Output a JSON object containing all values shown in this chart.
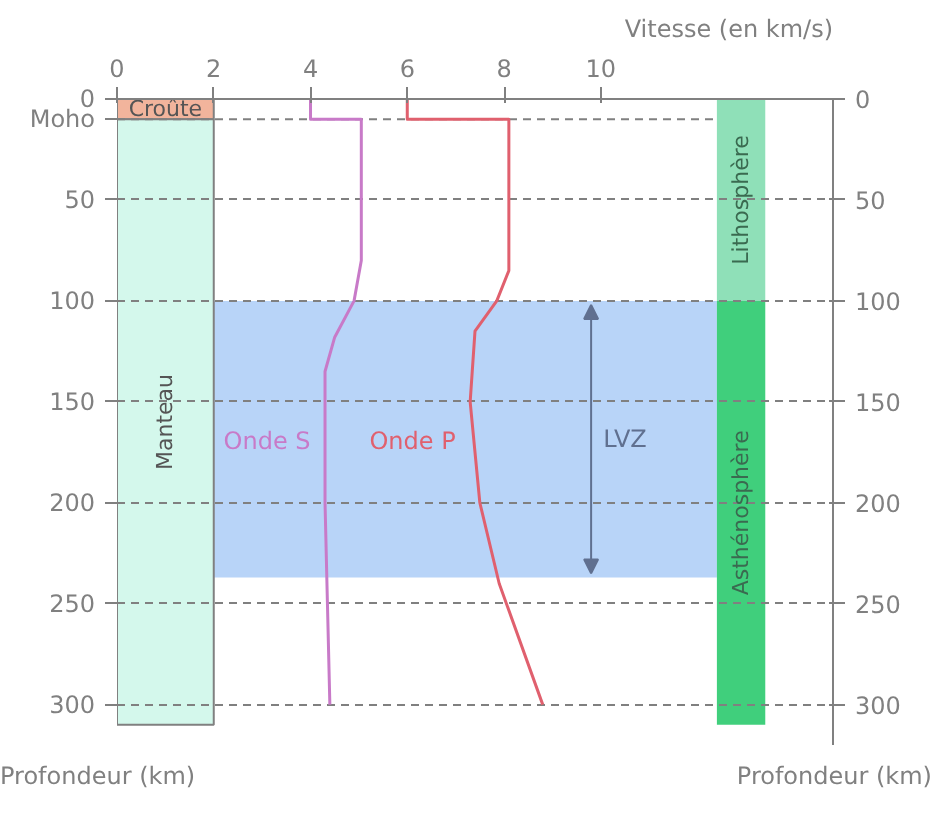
{
  "chart_data": {
    "type": "line",
    "xlabel": "Vitesse (en km/s)",
    "ylabel": "Profondeur (km)",
    "y2label": "Profondeur (km)",
    "xlim": [
      0,
      14.8
    ],
    "xticks": [
      0,
      2,
      4,
      6,
      8,
      10
    ],
    "ylim": [
      320,
      0
    ],
    "yticks": [
      0,
      50,
      100,
      150,
      200,
      250,
      300
    ],
    "y2lim": [
      320,
      0
    ],
    "y2ticks": [
      0,
      50,
      100,
      150,
      200,
      250,
      300
    ],
    "grid": "y",
    "line_style": "solid",
    "marker": "none",
    "series": [
      {
        "name": "Onde S",
        "color": "#c87ac8",
        "x": [
          4,
          4,
          5.05,
          5.05,
          4.9,
          4.5,
          4.3,
          4.3,
          4.35,
          4.4
        ],
        "values": [
          0,
          10,
          10,
          80,
          100,
          118,
          135,
          200,
          250,
          300
        ]
      },
      {
        "name": "Onde P",
        "color": "#e0606e",
        "x": [
          6,
          6,
          8.1,
          8.1,
          7.85,
          7.4,
          7.3,
          7.5,
          7.9,
          8.8
        ],
        "values": [
          0,
          10,
          10,
          85,
          100,
          115,
          150,
          200,
          240,
          300
        ]
      }
    ],
    "ref_lines": [
      {
        "axis": "y",
        "value": 10,
        "label": "Moho",
        "line_style": "dashed",
        "color": "#808080"
      }
    ],
    "bands": [
      {
        "axis": "y",
        "from": 100,
        "to": 237,
        "label": "LVZ",
        "color": "#b8d4f8"
      },
      {
        "axis": "y",
        "from": 0,
        "to": 10,
        "label": "Croûte",
        "color": "#f2b49c"
      },
      {
        "axis": "y",
        "from": 10,
        "to": 310,
        "label": "Manteau",
        "color": "#d4f8ec"
      },
      {
        "axis": "y2",
        "from": 0,
        "to": 100,
        "label": "Lithosphère",
        "color": "#8fe0b8"
      },
      {
        "axis": "y2",
        "from": 100,
        "to": 310,
        "label": "Asthénosphère",
        "color": "#40cf7c"
      }
    ]
  }
}
